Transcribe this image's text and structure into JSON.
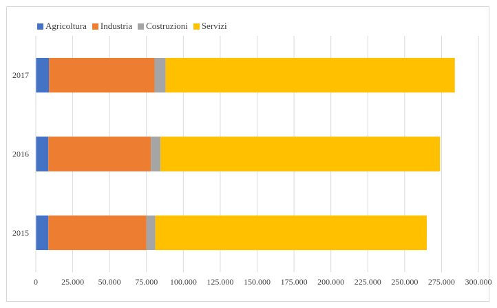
{
  "chart_data": {
    "type": "bar",
    "orientation": "horizontal",
    "stacked": true,
    "categories": [
      "2015",
      "2016",
      "2017"
    ],
    "series": [
      {
        "name": "Agricoltura",
        "color": "#4472c4",
        "values": [
          8500,
          8500,
          9000
        ]
      },
      {
        "name": "Industria",
        "color": "#ed7d31",
        "values": [
          66500,
          69500,
          71500
        ]
      },
      {
        "name": "Costruzioni",
        "color": "#a5a5a5",
        "values": [
          6000,
          6500,
          7500
        ]
      },
      {
        "name": "Servizi",
        "color": "#ffc000",
        "values": [
          184000,
          189500,
          196000
        ]
      }
    ],
    "xlim": [
      0,
      300000
    ],
    "xticks": [
      0,
      25000,
      50000,
      75000,
      100000,
      125000,
      150000,
      175000,
      200000,
      225000,
      250000,
      275000,
      300000
    ],
    "xtick_labels": [
      "0",
      "25.000",
      "50.000",
      "75.000",
      "100.000",
      "125.000",
      "150.000",
      "175.000",
      "200.000",
      "225.000",
      "250.000",
      "275.000",
      "300.000"
    ],
    "grid": true,
    "legend_position": "top-left",
    "title": "",
    "xlabel": "",
    "ylabel": ""
  }
}
